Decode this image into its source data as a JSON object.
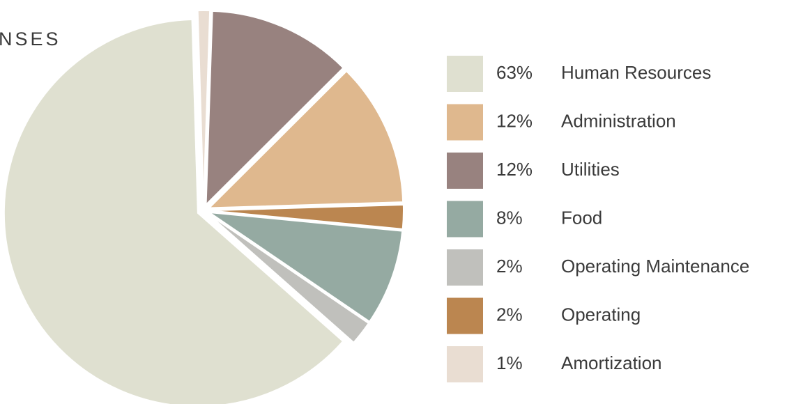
{
  "chart_data": {
    "type": "pie",
    "title": "NSES",
    "categories": [
      "Human Resources",
      "Administration",
      "Utilities",
      "Food",
      "Operating Maintenance",
      "Operating",
      "Amortization"
    ],
    "values": [
      63,
      12,
      12,
      8,
      2,
      2,
      1
    ],
    "value_labels": [
      "63%",
      "12%",
      "12%",
      "8%",
      "2%",
      "2%",
      "1%"
    ],
    "colors": [
      "#dfe0d0",
      "#dfb88e",
      "#98827f",
      "#95aaa2",
      "#c0c0bc",
      "#bb8650",
      "#e9ddd2"
    ]
  }
}
